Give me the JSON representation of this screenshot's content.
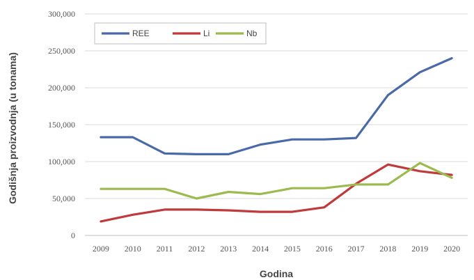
{
  "chart_data": {
    "type": "line",
    "x": [
      2009,
      2010,
      2011,
      2012,
      2013,
      2014,
      2015,
      2016,
      2017,
      2018,
      2019,
      2020
    ],
    "x_tick_labels": [
      "2009",
      "2010",
      "2011",
      "2012",
      "2013",
      "2014",
      "2015",
      "2016",
      "2017",
      "2018",
      "2019",
      "2020"
    ],
    "series": [
      {
        "name": "REE",
        "color": "#4a69a8",
        "values": [
          133000,
          133000,
          111000,
          110000,
          110000,
          123000,
          130000,
          130000,
          132000,
          190000,
          221000,
          240000
        ]
      },
      {
        "name": "Li",
        "color": "#c0393b",
        "values": [
          19000,
          28000,
          35000,
          35000,
          34000,
          32000,
          32000,
          38000,
          70000,
          96000,
          87000,
          82000
        ]
      },
      {
        "name": "Nb",
        "color": "#9bbb4e",
        "values": [
          63000,
          63000,
          63000,
          50000,
          59000,
          56000,
          64000,
          64000,
          69000,
          69000,
          98000,
          78000
        ]
      }
    ],
    "xlabel": "Godina",
    "ylabel": "Godišnja proizvodnja (u tonama)",
    "ylim": [
      0,
      300000
    ],
    "y_ticks": [
      0,
      50000,
      100000,
      150000,
      200000,
      250000,
      300000
    ],
    "y_tick_labels": [
      "0",
      "50,000",
      "100,000",
      "150,000",
      "200,000",
      "250,000",
      "300,000"
    ],
    "grid": true,
    "legend_position": "top-left"
  }
}
